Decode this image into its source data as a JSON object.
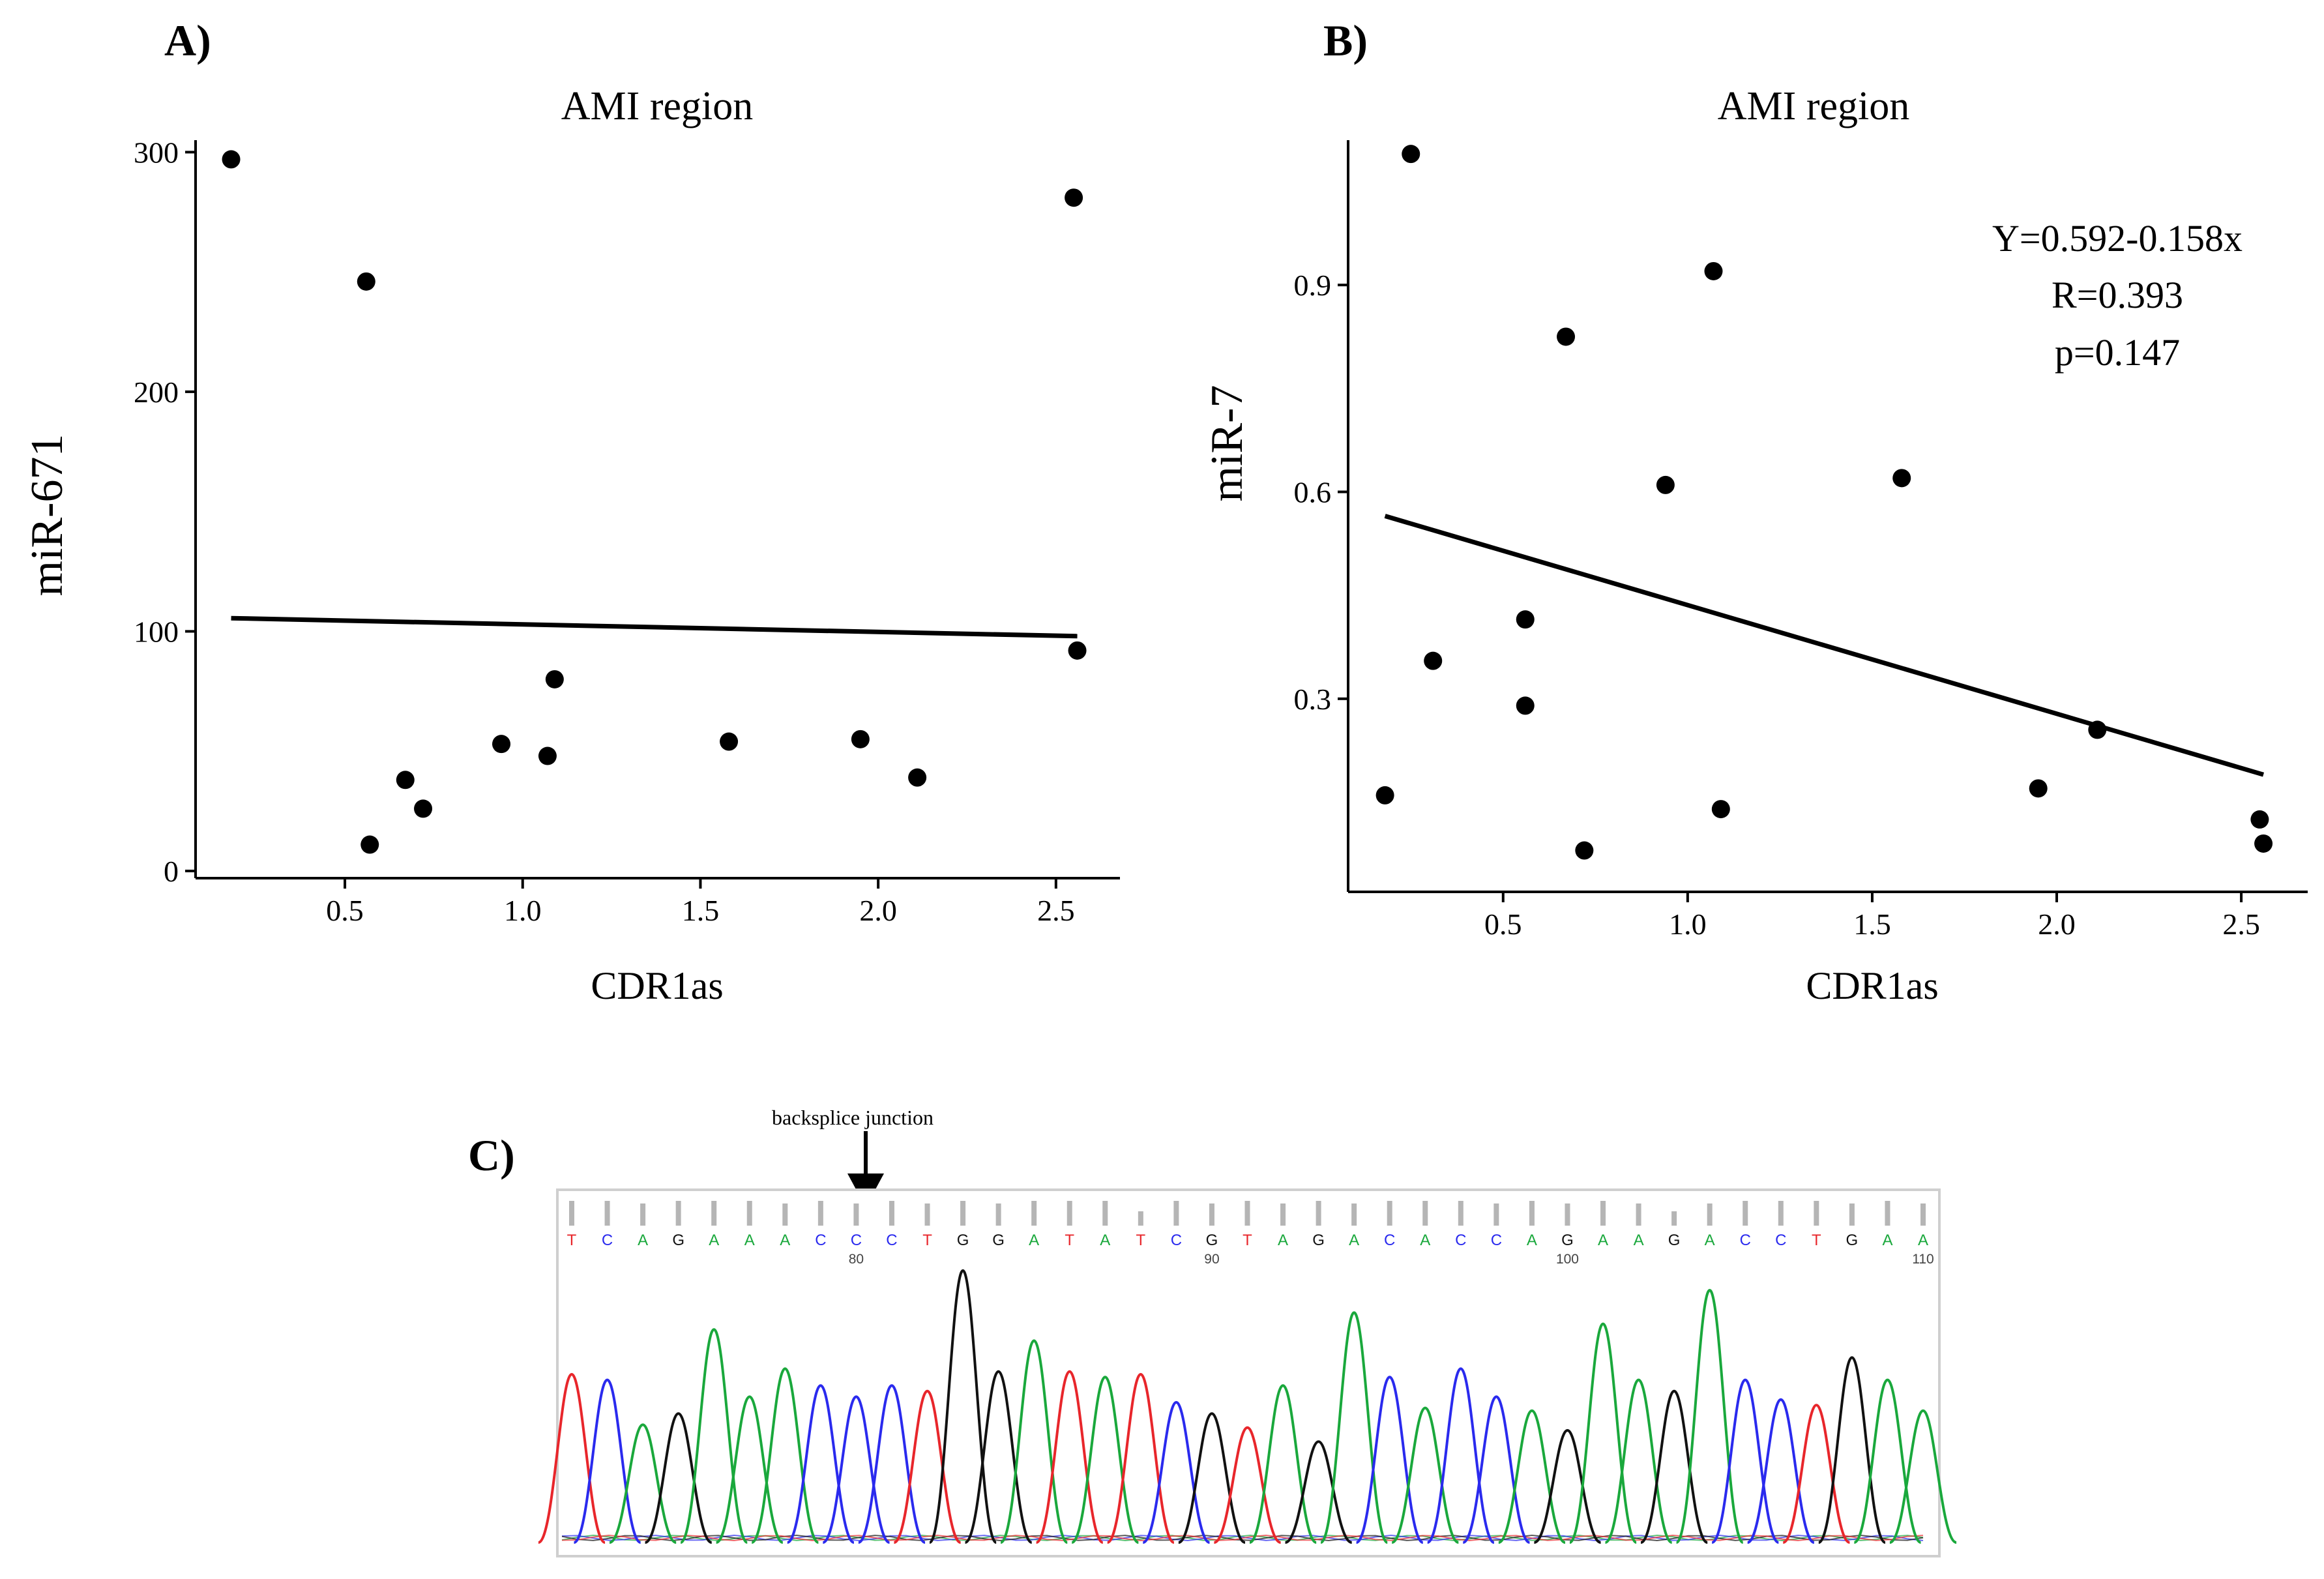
{
  "panels": {
    "a": {
      "label": "A)"
    },
    "b": {
      "label": "B)"
    },
    "c": {
      "label": "C)"
    }
  },
  "chart_data": [
    {
      "id": "A",
      "type": "scatter",
      "title": "AMI region",
      "xlabel": "CDR1as",
      "ylabel": "miR-671",
      "xlim": [
        0.08,
        2.68
      ],
      "ylim": [
        -3,
        305
      ],
      "xticks": [
        0.5,
        1.0,
        1.5,
        2.0,
        2.5
      ],
      "xtick_labels": [
        "0.5",
        "1.0",
        "1.5",
        "2.0",
        "2.5"
      ],
      "yticks": [
        0,
        100,
        200,
        300
      ],
      "ytick_labels": [
        "0",
        "100",
        "200",
        "300"
      ],
      "points": [
        {
          "x": 0.18,
          "y": 297
        },
        {
          "x": 0.56,
          "y": 246
        },
        {
          "x": 0.57,
          "y": 11
        },
        {
          "x": 0.67,
          "y": 38
        },
        {
          "x": 0.72,
          "y": 26
        },
        {
          "x": 0.94,
          "y": 53
        },
        {
          "x": 1.07,
          "y": 48
        },
        {
          "x": 1.09,
          "y": 80
        },
        {
          "x": 1.58,
          "y": 54
        },
        {
          "x": 1.95,
          "y": 55
        },
        {
          "x": 2.11,
          "y": 39
        },
        {
          "x": 2.55,
          "y": 281
        },
        {
          "x": 2.56,
          "y": 92
        }
      ],
      "fit_line": {
        "x": [
          0.18,
          2.56
        ],
        "y": [
          105.5,
          98
        ]
      },
      "annotation": []
    },
    {
      "id": "B",
      "type": "scatter",
      "title": "AMI region",
      "xlabel": "CDR1as",
      "ylabel": "miR-7",
      "xlim": [
        0.08,
        2.68
      ],
      "ylim": [
        0.02,
        1.11
      ],
      "xticks": [
        0.5,
        1.0,
        1.5,
        2.0,
        2.5
      ],
      "xtick_labels": [
        "0.5",
        "1.0",
        "1.5",
        "2.0",
        "2.5"
      ],
      "yticks": [
        0.3,
        0.6,
        0.9
      ],
      "ytick_labels": [
        "0.3",
        "0.6",
        "0.9"
      ],
      "points": [
        {
          "x": 0.18,
          "y": 0.16
        },
        {
          "x": 0.25,
          "y": 1.09
        },
        {
          "x": 0.31,
          "y": 0.355
        },
        {
          "x": 0.56,
          "y": 0.415
        },
        {
          "x": 0.56,
          "y": 0.29
        },
        {
          "x": 0.67,
          "y": 0.825
        },
        {
          "x": 0.72,
          "y": 0.08
        },
        {
          "x": 0.94,
          "y": 0.61
        },
        {
          "x": 1.07,
          "y": 0.92
        },
        {
          "x": 1.09,
          "y": 0.14
        },
        {
          "x": 1.58,
          "y": 0.62
        },
        {
          "x": 1.95,
          "y": 0.17
        },
        {
          "x": 2.11,
          "y": 0.255
        },
        {
          "x": 2.55,
          "y": 0.125
        },
        {
          "x": 2.56,
          "y": 0.09
        }
      ],
      "fit_line": {
        "x": [
          0.18,
          2.56
        ],
        "y": [
          0.565,
          0.19
        ]
      },
      "annotation": [
        "Y=0.592-0.158x",
        "R=0.393",
        "p=0.147"
      ]
    }
  ],
  "chromatogram": {
    "annotation": "backsplice junction",
    "bases": [
      "T",
      "C",
      "A",
      "G",
      "A",
      "A",
      "A",
      "C",
      "C",
      "C",
      "T",
      "G",
      "G",
      "A",
      "T",
      "A",
      "T",
      "C",
      "G",
      "T",
      "A",
      "G",
      "A",
      "C",
      "A",
      "C",
      "C",
      "A",
      "G",
      "A",
      "A",
      "G",
      "A",
      "C",
      "C",
      "T",
      "G",
      "A",
      "A"
    ],
    "position_labels": [
      {
        "label": "80",
        "base_index": 8
      },
      {
        "label": "90",
        "base_index": 18
      },
      {
        "label": "100",
        "base_index": 28
      },
      {
        "label": "110",
        "base_index": 38
      }
    ],
    "junction_base_index": 8,
    "peak_heights": [
      0.6,
      0.58,
      0.42,
      0.46,
      0.76,
      0.52,
      0.62,
      0.56,
      0.52,
      0.56,
      0.54,
      0.97,
      0.61,
      0.72,
      0.61,
      0.59,
      0.6,
      0.5,
      0.46,
      0.41,
      0.56,
      0.36,
      0.82,
      0.59,
      0.48,
      0.62,
      0.52,
      0.47,
      0.4,
      0.78,
      0.58,
      0.54,
      0.9,
      0.58,
      0.51,
      0.49,
      0.66,
      0.58,
      0.47
    ],
    "colors": {
      "A": "#1aa83c",
      "C": "#2a2aee",
      "G": "#111111",
      "T": "#e8262b"
    }
  }
}
